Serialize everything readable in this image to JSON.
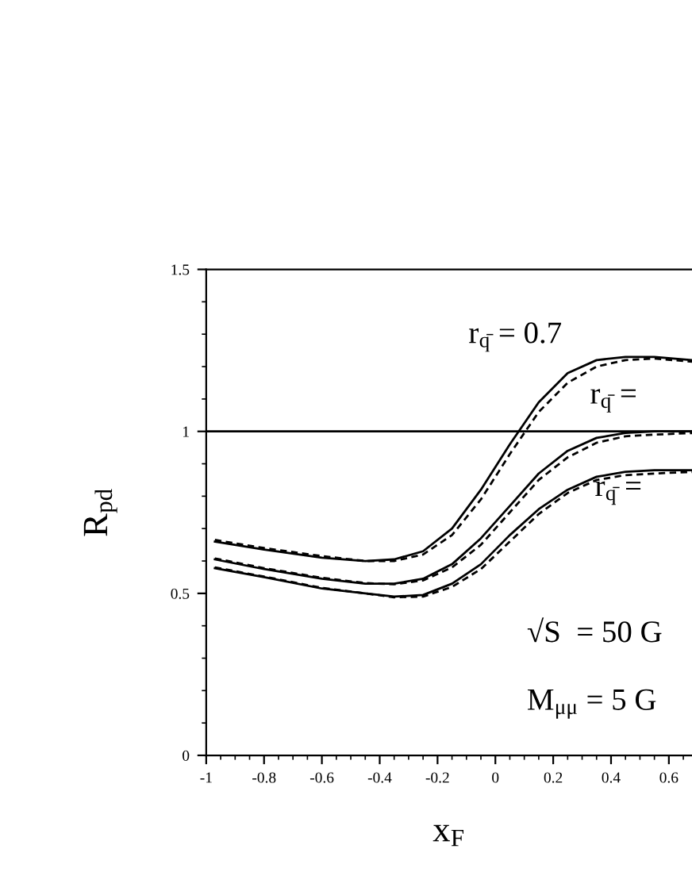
{
  "chart_data": {
    "type": "line",
    "xlabel": "x$_{F}$",
    "ylabel": "R$_{pd}$",
    "x": [
      -0.97,
      -0.8,
      -0.6,
      -0.45,
      -0.35,
      -0.25,
      -0.15,
      -0.05,
      0.05,
      0.15,
      0.25,
      0.35,
      0.45,
      0.55,
      0.68
    ],
    "series": [
      {
        "color": "#000000",
        "line_style": "solid",
        "values": [
          0.66,
          0.635,
          0.61,
          0.6,
          0.605,
          0.63,
          0.7,
          0.82,
          0.96,
          1.09,
          1.18,
          1.22,
          1.23,
          1.23,
          1.22
        ]
      },
      {
        "color": "#000000",
        "line_style": "dashed",
        "values": [
          0.665,
          0.64,
          0.615,
          0.6,
          0.6,
          0.62,
          0.68,
          0.79,
          0.93,
          1.06,
          1.15,
          1.2,
          1.22,
          1.225,
          1.215
        ]
      },
      {
        "color": "#000000",
        "line_style": "solid",
        "values": [
          0.605,
          0.575,
          0.545,
          0.53,
          0.53,
          0.545,
          0.59,
          0.67,
          0.77,
          0.87,
          0.94,
          0.98,
          0.995,
          1.0,
          1.0
        ]
      },
      {
        "color": "#000000",
        "line_style": "dashed",
        "values": [
          0.608,
          0.578,
          0.548,
          0.532,
          0.528,
          0.54,
          0.58,
          0.65,
          0.75,
          0.85,
          0.92,
          0.965,
          0.985,
          0.99,
          0.995
        ]
      },
      {
        "color": "#000000",
        "line_style": "solid",
        "values": [
          0.578,
          0.55,
          0.515,
          0.5,
          0.49,
          0.495,
          0.53,
          0.59,
          0.68,
          0.76,
          0.82,
          0.86,
          0.875,
          0.88,
          0.88
        ]
      },
      {
        "color": "#000000",
        "line_style": "dashed",
        "values": [
          0.58,
          0.552,
          0.517,
          0.5,
          0.488,
          0.49,
          0.52,
          0.575,
          0.66,
          0.745,
          0.81,
          0.85,
          0.865,
          0.87,
          0.875
        ]
      }
    ],
    "xlim": [
      -1,
      0.68
    ],
    "ylim": [
      0,
      1.5
    ],
    "xticks": [
      {
        "value": -1,
        "label": "-1"
      },
      {
        "value": -0.8,
        "label": "-0.8"
      },
      {
        "value": -0.6,
        "label": "-0.6"
      },
      {
        "value": -0.4,
        "label": "-0.4"
      },
      {
        "value": -0.2,
        "label": "-0.2"
      },
      0,
      0.2,
      0.4,
      0.6
    ],
    "yticks": [
      0,
      0.5,
      1,
      1.5
    ],
    "ref_lines": [
      {
        "axis": "y",
        "value": 1,
        "color": "#000000"
      }
    ],
    "grid": false,
    "legend": false,
    "annotations": [
      "r$_{q̄}$ = 0.7",
      "r$_{q̄}$ =",
      "r$_{q̄}$ =",
      "√S  = 50 G",
      "M$_{μμ}$ = 5 G"
    ]
  }
}
